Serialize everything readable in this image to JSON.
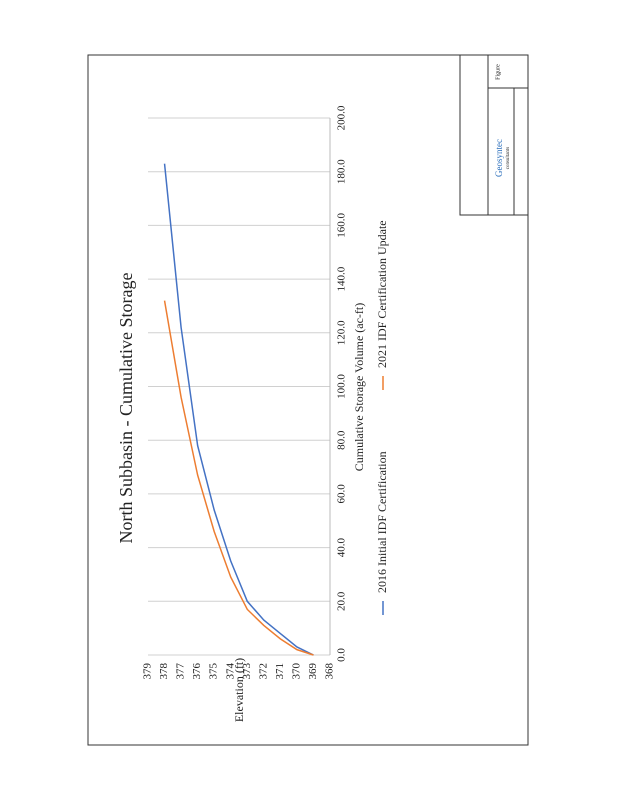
{
  "chart_data": {
    "type": "line",
    "title": "North Subbasin - Cumulative Storage",
    "x_label": "Cumulative Storage Volume (ac-ft)",
    "y_label": "Elevation (ft)",
    "xlim": [
      0,
      200
    ],
    "ylim": [
      368,
      379
    ],
    "xticks": [
      {
        "value": 0,
        "label": "0.0"
      },
      {
        "value": 20,
        "label": "20.0"
      },
      {
        "value": 40,
        "label": "40.0"
      },
      {
        "value": 60,
        "label": "60.0"
      },
      {
        "value": 80,
        "label": "80.0"
      },
      {
        "value": 100,
        "label": "100.0"
      },
      {
        "value": 120,
        "label": "120.0"
      },
      {
        "value": 140,
        "label": "140.0"
      },
      {
        "value": 160,
        "label": "160.0"
      },
      {
        "value": 180,
        "label": "180.0"
      },
      {
        "value": 200,
        "label": "200.0"
      }
    ],
    "yticks": [
      368,
      369,
      370,
      371,
      372,
      373,
      374,
      375,
      376,
      377,
      378,
      379
    ],
    "grid": "x",
    "series": [
      {
        "name": "2016 Initial IDF Certification",
        "color": "#4472c4",
        "x": [
          0,
          3,
          8,
          13,
          20,
          35,
          54,
          78,
          122,
          183
        ],
        "values": [
          369,
          370,
          371,
          372,
          373,
          374,
          375,
          376,
          377,
          378
        ]
      },
      {
        "name": "2021 IDF Certification Update",
        "color": "#ed7d31",
        "x": [
          0,
          2,
          6,
          11,
          17,
          29,
          46,
          67,
          96,
          132
        ],
        "values": [
          369,
          370,
          371,
          372,
          373,
          374,
          375,
          376,
          377,
          378
        ]
      }
    ]
  },
  "title_block": {
    "company": "Geosyntec",
    "company_sub": "consultants",
    "figure_label": "Figure"
  }
}
